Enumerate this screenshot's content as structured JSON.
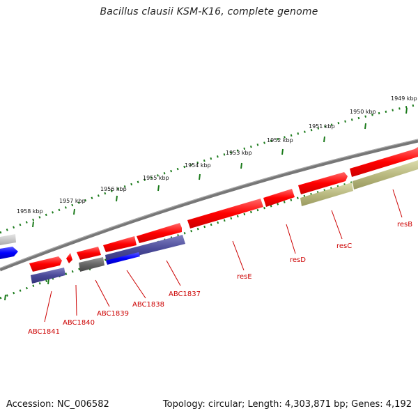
{
  "title": "Bacillus clausii KSM-K16, complete genome",
  "footer": {
    "accession": "Accession: NC_006582",
    "summary": "Topology: circular; Length: 4,303,871 bp; Genes: 4,192"
  },
  "ruler_ticks": [
    "1958 kbp",
    "1957 kbp",
    "1956 kbp",
    "1955 kbp",
    "1954 kbp",
    "1953 kbp",
    "1952 kbp",
    "1951 kbp",
    "1950 kbp",
    "1949 kbp"
  ],
  "gene_labels": [
    "ABC1841",
    "ABC1840",
    "ABC1839",
    "ABC1838",
    "ABC1837",
    "resE",
    "resD",
    "resC",
    "resB"
  ],
  "colors": {
    "cds_red": "#ff0000",
    "cds_navy": "#4a4a99",
    "cds_blue": "#0000ff",
    "cds_gray": "#666666",
    "cds_olive": "#b9b980",
    "backbone": "#777777",
    "tick_green": "#1a7a1a",
    "label_red": "#cc0000"
  }
}
